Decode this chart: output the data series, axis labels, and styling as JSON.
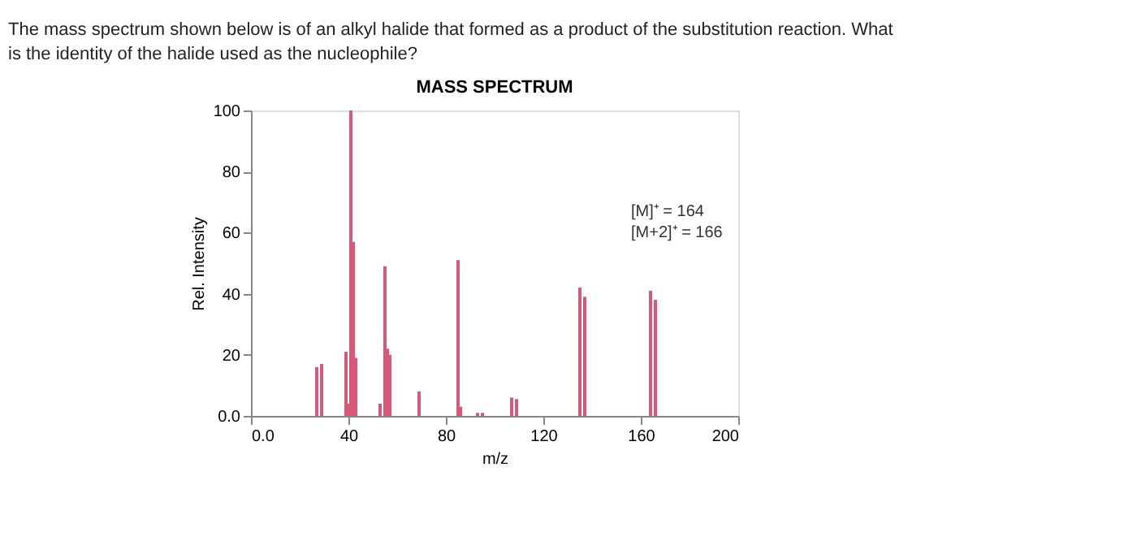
{
  "chart_data": {
    "type": "bar",
    "title": "MASS SPECTRUM",
    "xlabel": "m/z",
    "ylabel": "Rel. Intensity",
    "annotations": [
      "The mass spectrum shown below is of an alkyl halide that formed as a product of the substitution reaction. What is the identity of the halide used as the nucleophile?",
      "[M]⁺ = 164",
      "[M+2]⁺ = 166"
    ],
    "x": [
      27,
      29,
      39,
      40,
      41,
      42,
      43,
      53,
      55,
      56,
      57,
      69,
      85,
      86,
      93,
      95,
      107,
      109,
      135,
      137,
      164,
      166
    ],
    "values": [
      16,
      17,
      21,
      4,
      100,
      57,
      19,
      4,
      49,
      22,
      20,
      8,
      51,
      3,
      1,
      1,
      6,
      5.5,
      42,
      39,
      41,
      38
    ],
    "color": "#d9587a",
    "xlim": [
      0,
      200
    ],
    "xticks": [
      {
        "value": 0,
        "label": "0.0"
      },
      40,
      80,
      120,
      160,
      200
    ],
    "ylim": [
      0,
      100
    ],
    "yticks": [
      {
        "value": 0,
        "label": "0.0"
      },
      20,
      40,
      60,
      80,
      100
    ],
    "grid": false
  }
}
